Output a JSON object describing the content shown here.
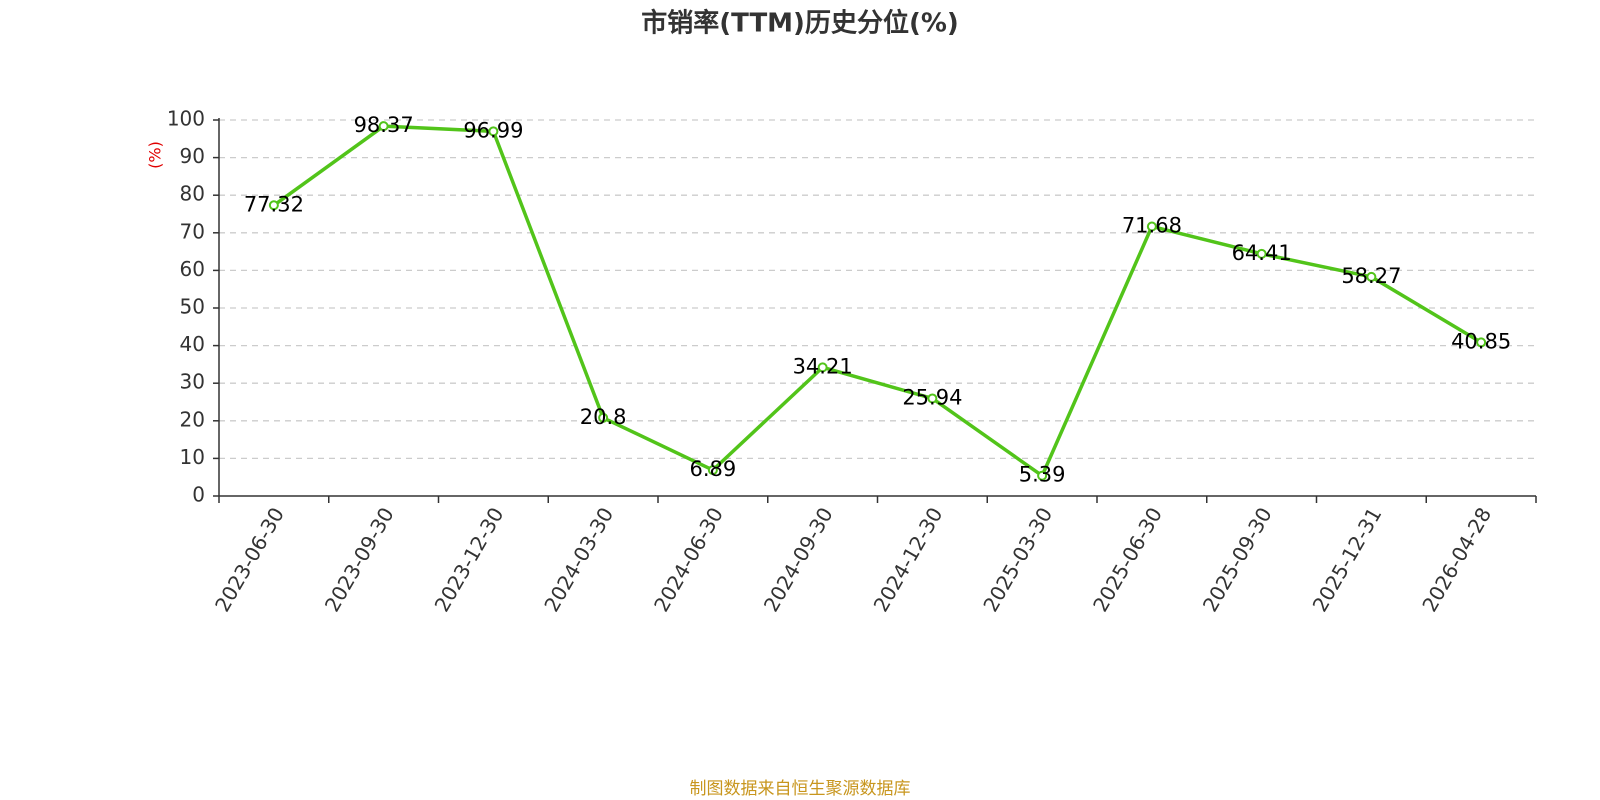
{
  "chart_data": {
    "type": "line",
    "title": "市销率(TTM)历史分位(%)",
    "y_label": "(%)",
    "source": "制图数据来自恒生聚源数据库",
    "categories": [
      "2023-06-30",
      "2023-09-30",
      "2023-12-30",
      "2024-03-30",
      "2024-06-30",
      "2024-09-30",
      "2024-12-30",
      "2025-03-30",
      "2025-06-30",
      "2025-09-30",
      "2025-12-31",
      "2026-04-28"
    ],
    "values": [
      77.32,
      98.37,
      96.99,
      20.8,
      6.89,
      34.21,
      25.94,
      5.39,
      71.68,
      64.41,
      58.27,
      40.85
    ],
    "color": "#52c41a",
    "ylim": [
      0,
      100
    ],
    "yticks": [
      0,
      10,
      20,
      30,
      40,
      50,
      60,
      70,
      80,
      90,
      100
    ],
    "grid": true
  }
}
